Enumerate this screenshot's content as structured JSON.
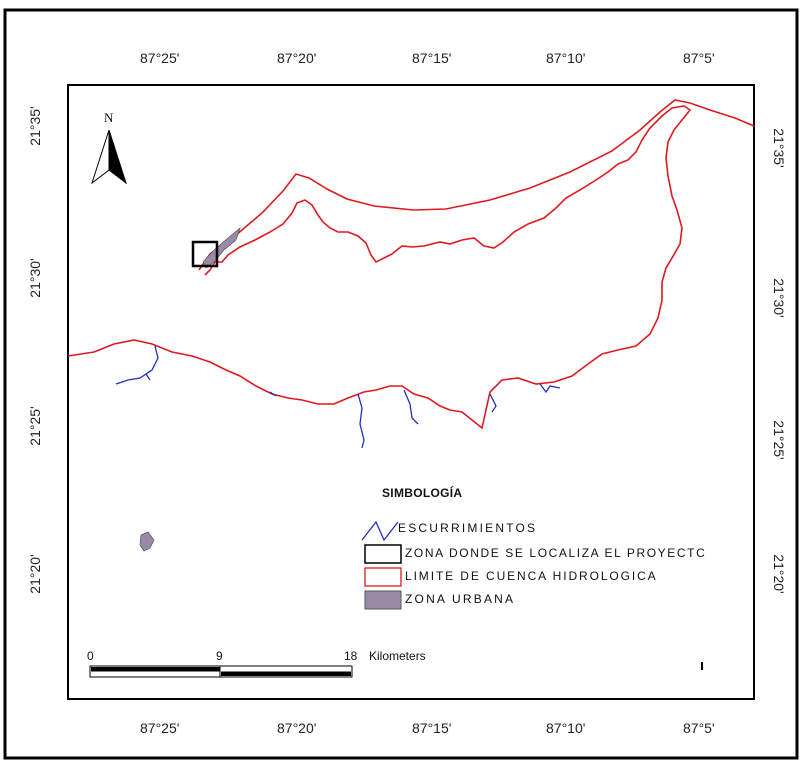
{
  "map": {
    "top_ticks": [
      "87°25'",
      "87°20'",
      "87°15'",
      "87°10'",
      "87°5'"
    ],
    "bottom_ticks": [
      "87°25'",
      "87°20'",
      "87°15'",
      "87°10'",
      "87°5'"
    ],
    "left_ticks": [
      "21°35'",
      "21°30'",
      "21°25'",
      "21°20'"
    ],
    "right_ticks": [
      "21°35'",
      "21°30'",
      "21°25'",
      "21°20'"
    ],
    "north_label": "N",
    "colors": {
      "watershed": "#e0191f",
      "streams": "#1f2fbf",
      "urban": "#9a8aa8",
      "frame": "#000000"
    }
  },
  "legend": {
    "title": "SIMBOLOGÍA",
    "items": [
      {
        "label": "ESCURRIMIENTOS",
        "symbol": "streams"
      },
      {
        "label": "ZONA DONDE SE LOCALIZA EL PROYECTC",
        "symbol": "project-box"
      },
      {
        "label": "LIMITE DE CUENCA HIDROLOGICA",
        "symbol": "watershed"
      },
      {
        "label": "ZONA URBANA",
        "symbol": "urban"
      }
    ]
  },
  "scale_bar": {
    "labels": [
      "0",
      "9",
      "18"
    ],
    "unit": "Kilometers"
  }
}
